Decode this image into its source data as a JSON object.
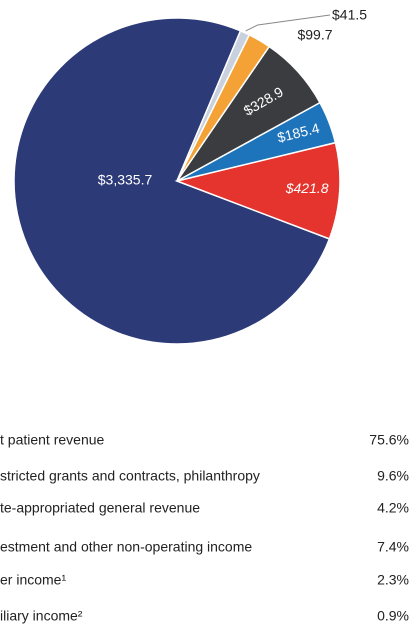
{
  "chart_data": {
    "type": "pie",
    "categories": [
      "t patient revenue",
      "stricted grants and contracts, philanthropy",
      "te-appropriated general revenue",
      "estment and other non-operating income",
      "er income¹",
      "iliary income²"
    ],
    "values": [
      3335.7,
      421.8,
      185.4,
      328.9,
      99.7,
      41.5
    ],
    "value_labels": [
      "$3,335.7",
      "$421.8",
      "$185.4",
      "$328.9",
      "$99.7",
      "$41.5"
    ],
    "colors": [
      "#2c3a78",
      "#e5332d",
      "#1d74bb",
      "#3b3c40",
      "#f4a136",
      "#c9d1df"
    ],
    "legend_percentages": [
      "75.6%",
      "9.6%",
      "4.2%",
      "7.4%",
      "2.3%",
      "0.9%"
    ]
  }
}
